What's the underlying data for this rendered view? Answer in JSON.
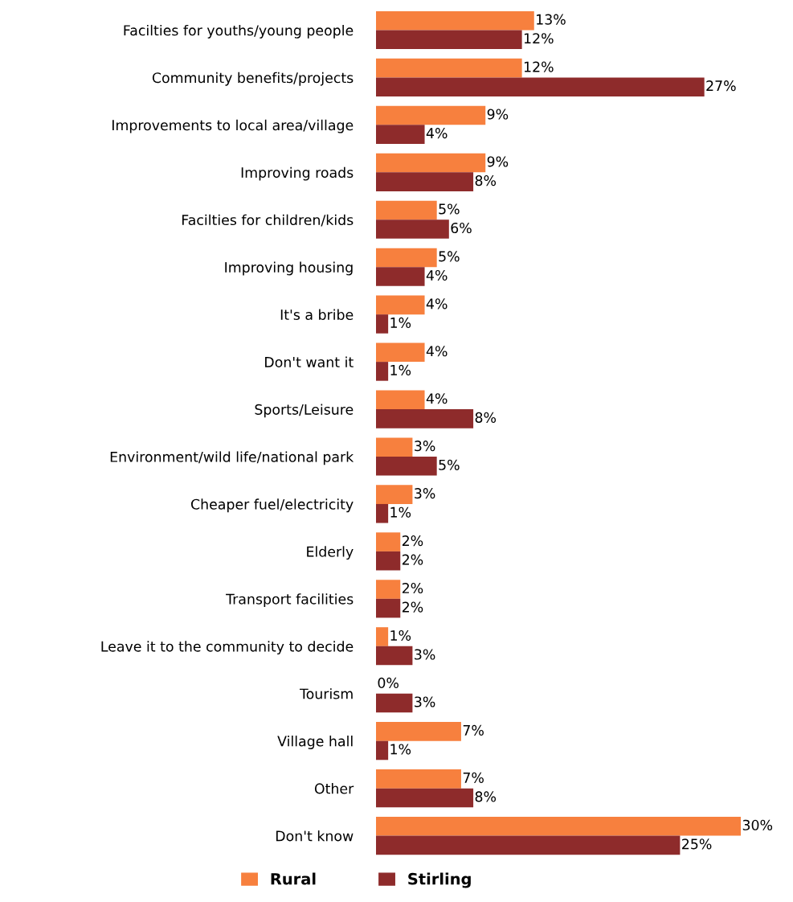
{
  "chart_data": {
    "type": "bar",
    "orientation": "horizontal",
    "legend": "bottom",
    "grid": false,
    "categories": [
      "Facilties for youths/young people",
      "Community benefits/projects",
      "Improvements to local area/village",
      "Improving roads",
      "Facilties for children/kids",
      "Improving housing",
      "It's a bribe",
      "Don't want it",
      "Sports/Leisure",
      "Environment/wild life/national park",
      "Cheaper fuel/electricity",
      "Elderly",
      "Transport facilities",
      "Leave it to the community to decide",
      "Tourism",
      "Village hall",
      "Other",
      "Don't know"
    ],
    "series": [
      {
        "name": "Rural",
        "color": "#f7803e",
        "values": [
          13,
          12,
          9,
          9,
          5,
          5,
          4,
          4,
          4,
          3,
          3,
          2,
          2,
          1,
          0,
          7,
          7,
          30
        ],
        "value_labels": [
          "13%",
          "12%",
          "9%",
          "9%",
          "5%",
          "5%",
          "4%",
          "4%",
          "4%",
          "3%",
          "3%",
          "2%",
          "2%",
          "1%",
          "0%",
          "7%",
          "7%",
          "30%"
        ]
      },
      {
        "name": "Stirling",
        "color": "#8e2b2b",
        "values": [
          12,
          27,
          4,
          8,
          6,
          4,
          1,
          1,
          8,
          5,
          1,
          2,
          2,
          3,
          3,
          1,
          8,
          25
        ],
        "value_labels": [
          "12%",
          "27%",
          "4%",
          "8%",
          "6%",
          "4%",
          "1%",
          "1%",
          "8%",
          "5%",
          "1%",
          "2%",
          "2%",
          "3%",
          "3%",
          "1%",
          "8%",
          "25%"
        ]
      }
    ]
  }
}
